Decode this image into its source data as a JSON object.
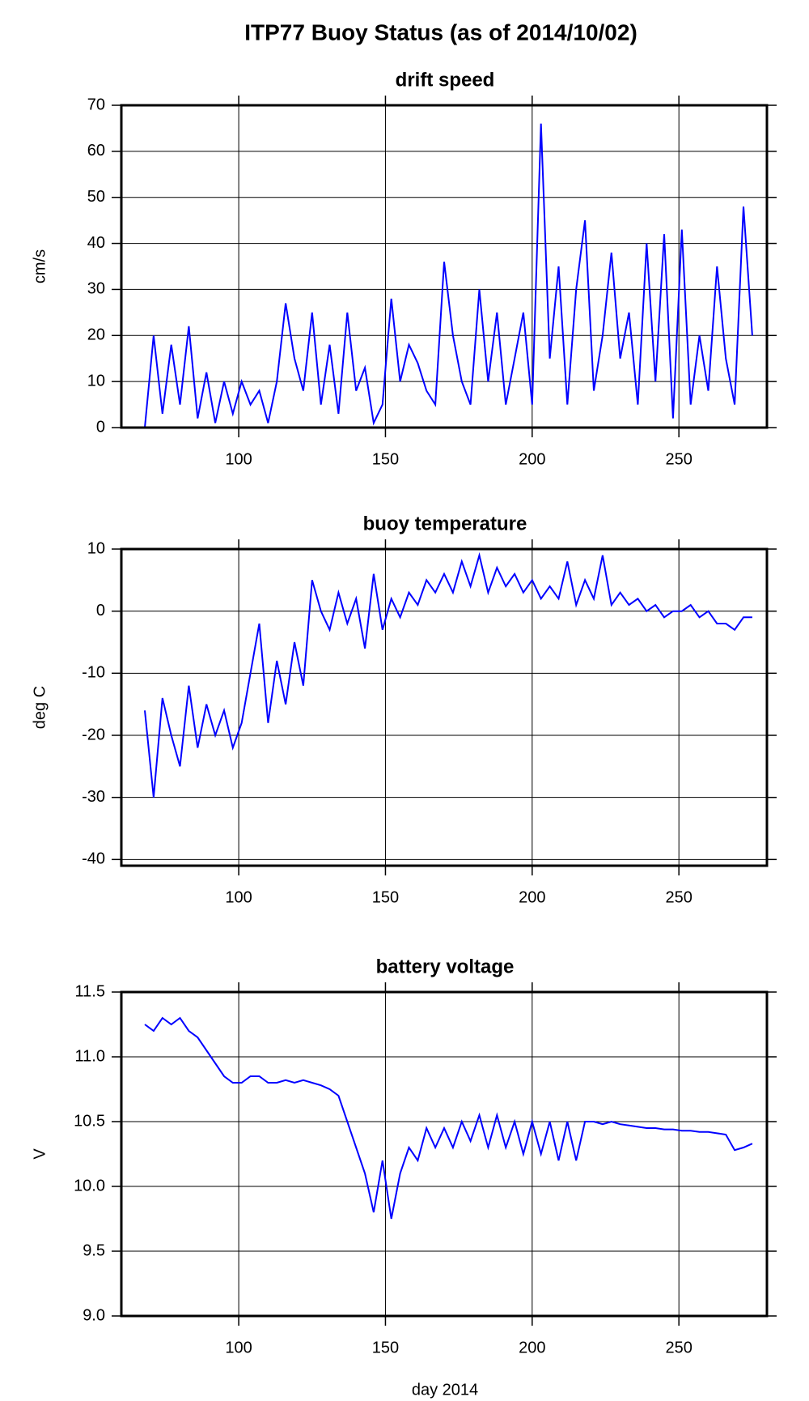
{
  "title": "ITP77 Buoy Status (as of 2014/10/02)",
  "chart_data": [
    {
      "type": "line",
      "title": "drift speed",
      "ylabel": "cm/s",
      "color": "#0000ff",
      "grid": true,
      "xlim": [
        60,
        280
      ],
      "xticks": [
        100,
        150,
        200,
        250
      ],
      "ylim": [
        0,
        70
      ],
      "yticks": [
        0,
        10,
        20,
        30,
        40,
        50,
        60,
        70
      ],
      "x": [
        68,
        71,
        74,
        77,
        80,
        83,
        86,
        89,
        92,
        95,
        98,
        101,
        104,
        107,
        110,
        113,
        116,
        119,
        122,
        125,
        128,
        131,
        134,
        137,
        140,
        143,
        146,
        149,
        152,
        155,
        158,
        161,
        164,
        167,
        170,
        173,
        176,
        179,
        182,
        185,
        188,
        191,
        194,
        197,
        200,
        203,
        206,
        209,
        212,
        215,
        218,
        221,
        224,
        227,
        230,
        233,
        236,
        239,
        242,
        245,
        248,
        251,
        254,
        257,
        260,
        263,
        266,
        269,
        272,
        275
      ],
      "values": [
        0,
        20,
        3,
        18,
        5,
        22,
        2,
        12,
        1,
        10,
        3,
        10,
        5,
        8,
        1,
        10,
        27,
        15,
        8,
        25,
        5,
        18,
        3,
        25,
        8,
        13,
        1,
        5,
        28,
        10,
        18,
        14,
        8,
        5,
        36,
        20,
        10,
        5,
        30,
        10,
        25,
        5,
        15,
        25,
        5,
        66,
        15,
        35,
        5,
        30,
        45,
        8,
        20,
        38,
        15,
        25,
        5,
        40,
        10,
        42,
        2,
        43,
        5,
        20,
        8,
        35,
        15,
        5,
        48,
        20
      ]
    },
    {
      "type": "line",
      "title": "buoy temperature",
      "ylabel": "deg C",
      "color": "#0000ff",
      "grid": true,
      "xlim": [
        60,
        280
      ],
      "xticks": [
        100,
        150,
        200,
        250
      ],
      "ylim": [
        -41,
        10
      ],
      "yticks": [
        -40,
        -30,
        -20,
        -10,
        0,
        10
      ],
      "x": [
        68,
        71,
        74,
        77,
        80,
        83,
        86,
        89,
        92,
        95,
        98,
        101,
        104,
        107,
        110,
        113,
        116,
        119,
        122,
        125,
        128,
        131,
        134,
        137,
        140,
        143,
        146,
        149,
        152,
        155,
        158,
        161,
        164,
        167,
        170,
        173,
        176,
        179,
        182,
        185,
        188,
        191,
        194,
        197,
        200,
        203,
        206,
        209,
        212,
        215,
        218,
        221,
        224,
        227,
        230,
        233,
        236,
        239,
        242,
        245,
        248,
        251,
        254,
        257,
        260,
        263,
        266,
        269,
        272,
        275
      ],
      "values": [
        -16,
        -30,
        -14,
        -20,
        -25,
        -12,
        -22,
        -15,
        -20,
        -16,
        -22,
        -18,
        -10,
        -2,
        -18,
        -8,
        -15,
        -5,
        -12,
        5,
        0,
        -3,
        3,
        -2,
        2,
        -6,
        6,
        -3,
        2,
        -1,
        3,
        1,
        5,
        3,
        6,
        3,
        8,
        4,
        9,
        3,
        7,
        4,
        6,
        3,
        5,
        2,
        4,
        2,
        8,
        1,
        5,
        2,
        9,
        1,
        3,
        1,
        2,
        0,
        1,
        -1,
        0,
        0,
        1,
        -1,
        0,
        -2,
        -2,
        -3,
        -1,
        -1
      ]
    },
    {
      "type": "line",
      "title": "battery voltage",
      "ylabel": "V",
      "xlabel": "day 2014",
      "color": "#0000ff",
      "grid": true,
      "xlim": [
        60,
        280
      ],
      "xticks": [
        100,
        150,
        200,
        250
      ],
      "ylim": [
        9,
        11.5
      ],
      "yticks": [
        {
          "value": 9,
          "label": "9.0"
        },
        9.5,
        {
          "value": 10,
          "label": "10.0"
        },
        10.5,
        {
          "value": 11,
          "label": "11.0"
        },
        11.5
      ],
      "x": [
        68,
        71,
        74,
        77,
        80,
        83,
        86,
        89,
        92,
        95,
        98,
        101,
        104,
        107,
        110,
        113,
        116,
        119,
        122,
        125,
        128,
        131,
        134,
        137,
        140,
        143,
        146,
        149,
        152,
        155,
        158,
        161,
        164,
        167,
        170,
        173,
        176,
        179,
        182,
        185,
        188,
        191,
        194,
        197,
        200,
        203,
        206,
        209,
        212,
        215,
        218,
        221,
        224,
        227,
        230,
        233,
        236,
        239,
        242,
        245,
        248,
        251,
        254,
        257,
        260,
        263,
        266,
        269,
        272,
        275
      ],
      "values": [
        11.25,
        11.2,
        11.3,
        11.25,
        11.3,
        11.2,
        11.15,
        11.05,
        10.95,
        10.85,
        10.8,
        10.8,
        10.85,
        10.85,
        10.8,
        10.8,
        10.82,
        10.8,
        10.82,
        10.8,
        10.78,
        10.75,
        10.7,
        10.5,
        10.3,
        10.1,
        9.8,
        10.2,
        9.75,
        10.1,
        10.3,
        10.2,
        10.45,
        10.3,
        10.45,
        10.3,
        10.5,
        10.35,
        10.55,
        10.3,
        10.55,
        10.3,
        10.5,
        10.25,
        10.5,
        10.25,
        10.5,
        10.2,
        10.5,
        10.2,
        10.5,
        10.5,
        10.48,
        10.5,
        10.48,
        10.47,
        10.46,
        10.45,
        10.45,
        10.44,
        10.44,
        10.43,
        10.43,
        10.42,
        10.42,
        10.41,
        10.4,
        10.28,
        10.3,
        10.33
      ]
    }
  ]
}
